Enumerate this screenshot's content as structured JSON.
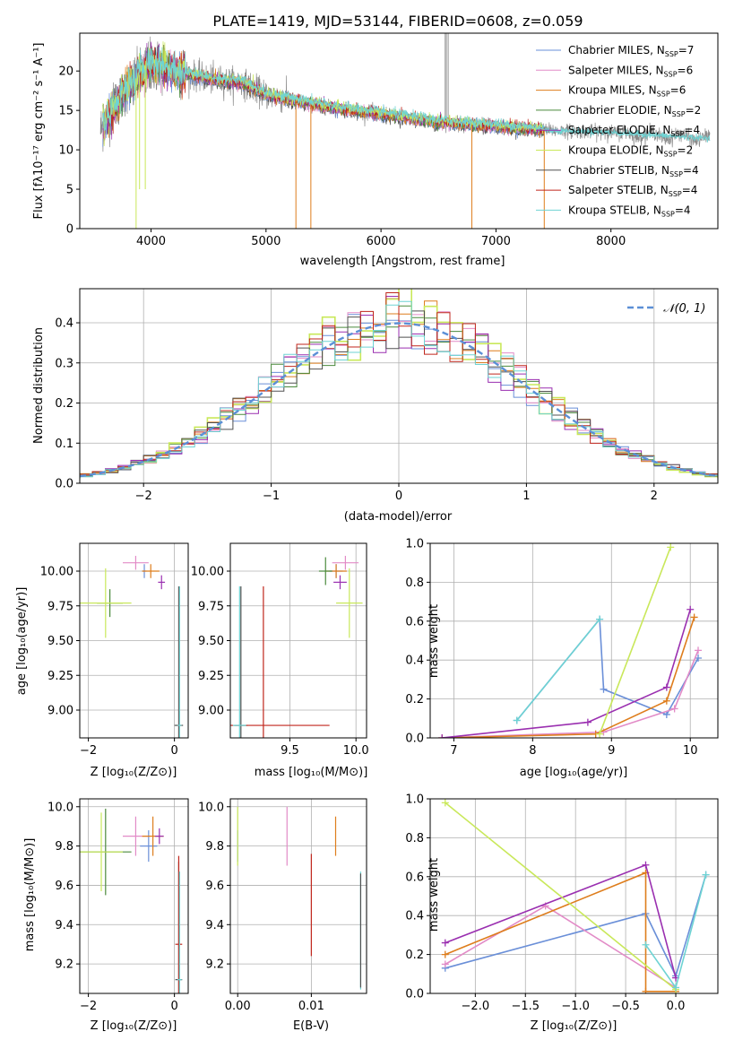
{
  "colors": [
    "#6a8fd8",
    "#e28bc7",
    "#de7d1c",
    "#4a8a3c",
    "#9a2fb0",
    "#c9e85a",
    "#505050",
    "#c0261c",
    "#6ed3d3"
  ],
  "chart_data": [
    {
      "type": "line",
      "title": "PLATE=1419, MJD=53144, FIBERID=0608, z=0.059",
      "xlabel": "wavelength [Angstrom, rest frame]",
      "ylabel": "Flux [fλ10⁻¹⁷ erg cm⁻² s⁻¹ A⁻¹]",
      "xlim": [
        3380,
        8930
      ],
      "ylim": [
        0,
        24.8
      ],
      "xticks": [
        4000,
        5000,
        6000,
        7000,
        8000
      ],
      "yticks": [
        0,
        5,
        10,
        15,
        20
      ],
      "grid": false,
      "legend": "top-right",
      "legend_entries": [
        "Chabrier MILES, N_SSP=7",
        "Salpeter MILES, N_SSP=6",
        "Kroupa MILES, N_SSP=6",
        "Chabrier ELODIE, N_SSP=2",
        "Salpeter ELODIE, N_SSP=4",
        "Kroupa ELODIE, N_SSP=2",
        "Chabrier STELIB, N_SSP=4",
        "Salpeter STELIB, N_SSP=4",
        "Kroupa STELIB, N_SSP=4"
      ],
      "legend_main": [
        "Chabrier MILES, N",
        "Salpeter MILES, N",
        "Kroupa MILES, N",
        "Chabrier ELODIE, N",
        "Salpeter ELODIE, N",
        "Kroupa ELODIE, N",
        "Chabrier STELIB, N",
        "Salpeter STELIB, N",
        "Kroupa STELIB, N"
      ],
      "legend_sub": "SSP",
      "legend_n": [
        "=7",
        "=6",
        "=6",
        "=2",
        "=4",
        "=2",
        "=4",
        "=4",
        "=4"
      ],
      "continuum": [
        [
          3600,
          13.5
        ],
        [
          3700,
          16
        ],
        [
          3800,
          18
        ],
        [
          3900,
          19.5
        ],
        [
          4000,
          21
        ],
        [
          4200,
          20
        ],
        [
          4500,
          19
        ],
        [
          4800,
          18.5
        ],
        [
          5000,
          17
        ],
        [
          5500,
          15.5
        ],
        [
          6000,
          14.5
        ],
        [
          6500,
          13.5
        ],
        [
          7000,
          13
        ],
        [
          7400,
          12.5
        ],
        [
          8000,
          12.2
        ],
        [
          8800,
          11.5
        ]
      ],
      "data_range": [
        3560,
        8860
      ],
      "model_range": [
        3580,
        7420
      ]
    },
    {
      "type": "line",
      "xlabel": "(data-model)/error",
      "ylabel": "Normed distribution",
      "xlim": [
        -2.5,
        2.5
      ],
      "ylim": [
        0,
        0.485
      ],
      "xticks": [
        -2,
        -1,
        0,
        1,
        2
      ],
      "yticks": [
        0.0,
        0.1,
        0.2,
        0.3,
        0.4
      ],
      "grid": true,
      "legend": "top-right",
      "legend_entries": [
        "𝒩(0, 1)"
      ],
      "reference_curve": "gaussian mean 0 sigma 1",
      "histogram_bin_width": 0.1
    },
    {
      "type": "scatter",
      "xlabel": "Z [log₁₀(Z/Z⊙)]",
      "ylabel": "age  [log₁₀(age/yr)]",
      "xlim": [
        -2.2,
        0.32
      ],
      "ylim": [
        8.8,
        10.2
      ],
      "xticks": [
        -2,
        0
      ],
      "yticks": [
        9.0,
        9.25,
        9.5,
        9.75,
        10.0
      ],
      "grid": true,
      "points": [
        {
          "series": 0,
          "x": -0.7,
          "y": 10.0,
          "xerr": 0.05,
          "yerr": 0.05
        },
        {
          "series": 1,
          "x": -0.9,
          "y": 10.06,
          "xerr": 0.3,
          "yerr": 0.05
        },
        {
          "series": 2,
          "x": -0.55,
          "y": 10.0,
          "xerr": 0.2,
          "yerr": 0.05
        },
        {
          "series": 3,
          "x": -1.5,
          "y": 9.77,
          "xerr": 0.3,
          "yerr": 0.1
        },
        {
          "series": 4,
          "x": -0.3,
          "y": 9.92,
          "xerr": 0.08,
          "yerr": 0.05
        },
        {
          "series": 5,
          "x": -1.6,
          "y": 9.77,
          "xerr": 0.6,
          "yerr": 0.25
        },
        {
          "series": 6,
          "x": 0.1,
          "y": 8.89,
          "xerr": 0.1,
          "yerr": 1.0
        },
        {
          "series": 7,
          "x": 0.12,
          "y": 8.89,
          "xerr": 0.05,
          "yerr": 1.0
        },
        {
          "series": 8,
          "x": 0.12,
          "y": 8.89,
          "xerr": 0.05,
          "yerr": 1.0
        }
      ]
    },
    {
      "type": "scatter",
      "xlabel": "mass [log₁₀(M/M⊙)]",
      "ylabel": "",
      "xlim": [
        9.05,
        10.08
      ],
      "ylim": [
        8.8,
        10.2
      ],
      "xticks": [
        9.5,
        10.0
      ],
      "yticks": [
        9.0,
        9.25,
        9.5,
        9.75,
        10.0
      ],
      "grid": true,
      "points": [
        {
          "series": 0,
          "x": 9.85,
          "y": 10.0,
          "xerr": 0.05,
          "yerr": 0.05
        },
        {
          "series": 1,
          "x": 9.92,
          "y": 10.06,
          "xerr": 0.1,
          "yerr": 0.05
        },
        {
          "series": 2,
          "x": 9.85,
          "y": 10.0,
          "xerr": 0.08,
          "yerr": 0.05
        },
        {
          "series": 3,
          "x": 9.77,
          "y": 10.0,
          "xerr": 0.05,
          "yerr": 0.1
        },
        {
          "series": 4,
          "x": 9.88,
          "y": 9.92,
          "xerr": 0.05,
          "yerr": 0.05
        },
        {
          "series": 5,
          "x": 9.95,
          "y": 9.77,
          "xerr": 0.1,
          "yerr": 0.25
        },
        {
          "series": 6,
          "x": 9.13,
          "y": 8.89,
          "xerr": 0.05,
          "yerr": 1.0
        },
        {
          "series": 7,
          "x": 9.3,
          "y": 8.89,
          "xerr": 0.5,
          "yerr": 1.0
        },
        {
          "series": 8,
          "x": 9.12,
          "y": 8.89,
          "xerr": 0.05,
          "yerr": 1.0
        }
      ]
    },
    {
      "type": "line",
      "xlabel": "age  [log₁₀(age/yr)]",
      "ylabel": "mass weight",
      "xlim": [
        6.7,
        10.35
      ],
      "ylim": [
        0,
        1.0
      ],
      "xticks": [
        7,
        8,
        9,
        10
      ],
      "yticks": [
        0.0,
        0.2,
        0.4,
        0.6,
        0.8,
        1.0
      ],
      "grid": true,
      "series": [
        {
          "color": 0,
          "x": [
            7.8,
            8.85,
            8.9,
            9.7,
            10.1
          ],
          "y": [
            0.09,
            0.61,
            0.25,
            0.12,
            0.41
          ]
        },
        {
          "color": 1,
          "x": [
            6.85,
            8.9,
            9.8,
            10.1
          ],
          "y": [
            0.0,
            0.03,
            0.15,
            0.45
          ]
        },
        {
          "color": 2,
          "x": [
            6.85,
            8.8,
            9.7,
            10.05
          ],
          "y": [
            0.0,
            0.02,
            0.19,
            0.62
          ]
        },
        {
          "color": 4,
          "x": [
            6.85,
            8.7,
            9.7,
            10.0
          ],
          "y": [
            0.0,
            0.08,
            0.26,
            0.66
          ]
        },
        {
          "color": 5,
          "x": [
            8.85,
            9.75
          ],
          "y": [
            0.02,
            0.98
          ]
        },
        {
          "color": 8,
          "x": [
            7.8,
            8.85
          ],
          "y": [
            0.09,
            0.61
          ]
        }
      ]
    },
    {
      "type": "scatter",
      "xlabel": "Z [log₁₀(Z/Z⊙)]",
      "ylabel": "mass [log₁₀(M/M⊙)]",
      "xlim": [
        -2.2,
        0.32
      ],
      "ylim": [
        9.05,
        10.04
      ],
      "xticks": [
        -2,
        0
      ],
      "yticks": [
        9.2,
        9.4,
        9.6,
        9.8,
        10.0
      ],
      "grid": true,
      "points": [
        {
          "series": 0,
          "x": -0.6,
          "y": 9.8,
          "xerr": 0.2,
          "yerr": 0.08
        },
        {
          "series": 1,
          "x": -0.9,
          "y": 9.85,
          "xerr": 0.3,
          "yerr": 0.1
        },
        {
          "series": 2,
          "x": -0.5,
          "y": 9.85,
          "xerr": 0.25,
          "yerr": 0.1
        },
        {
          "series": 3,
          "x": -1.6,
          "y": 9.77,
          "xerr": 0.6,
          "yerr": 0.22
        },
        {
          "series": 4,
          "x": -0.35,
          "y": 9.85,
          "xerr": 0.1,
          "yerr": 0.04
        },
        {
          "series": 5,
          "x": -1.7,
          "y": 9.77,
          "xerr": 0.5,
          "yerr": 0.2
        },
        {
          "series": 6,
          "x": 0.1,
          "y": 9.12,
          "xerr": 0.08,
          "yerr": 0.6
        },
        {
          "series": 7,
          "x": 0.1,
          "y": 9.3,
          "xerr": 0.08,
          "yerr": 0.45
        },
        {
          "series": 8,
          "x": 0.12,
          "y": 9.12,
          "xerr": 0.05,
          "yerr": 0.55
        }
      ]
    },
    {
      "type": "scatter",
      "xlabel": "E(B-V)",
      "ylabel": "",
      "xlim": [
        -0.001,
        0.0175
      ],
      "ylim": [
        9.05,
        10.04
      ],
      "xticks": [
        0.0,
        0.01
      ],
      "yticks": [
        9.2,
        9.4,
        9.6,
        9.8,
        10.0
      ],
      "grid": true,
      "points": [
        {
          "series": 0,
          "x": 0.0,
          "y": 9.8,
          "yerr": 0.08
        },
        {
          "series": 1,
          "x": 0.0067,
          "y": 9.85,
          "yerr": 0.15
        },
        {
          "series": 2,
          "x": 0.0133,
          "y": 9.85,
          "yerr": 0.1
        },
        {
          "series": 5,
          "x": 0.0,
          "y": 9.85,
          "yerr": 0.15
        },
        {
          "series": 7,
          "x": 0.01,
          "y": 9.5,
          "yerr": 0.26
        },
        {
          "series": 8,
          "x": 0.0167,
          "y": 9.37,
          "yerr": 0.3
        },
        {
          "series": 6,
          "x": 0.0167,
          "y": 9.37,
          "yerr": 0.29
        }
      ]
    },
    {
      "type": "line",
      "xlabel": "Z [log₁₀(Z/Z⊙)]",
      "ylabel": "mass weight",
      "xlim": [
        -2.45,
        0.42
      ],
      "ylim": [
        0,
        1.0
      ],
      "xticks": [
        -2.0,
        -1.5,
        -1.0,
        -0.5,
        0.0
      ],
      "yticks": [
        0.0,
        0.2,
        0.4,
        0.6,
        0.8,
        1.0
      ],
      "grid": true,
      "series": [
        {
          "color": 0,
          "x": [
            -2.3,
            -0.3,
            0.0,
            0.3
          ],
          "y": [
            0.13,
            0.41,
            0.09,
            0.61
          ]
        },
        {
          "color": 1,
          "x": [
            -2.3,
            -1.3,
            0.0
          ],
          "y": [
            0.15,
            0.45,
            0.03
          ]
        },
        {
          "color": 2,
          "x": [
            -2.3,
            -0.3,
            -0.3,
            0.0
          ],
          "y": [
            0.2,
            0.62,
            0.01,
            0.01
          ]
        },
        {
          "color": 4,
          "x": [
            -2.3,
            -0.3,
            0.0
          ],
          "y": [
            0.26,
            0.66,
            0.08
          ]
        },
        {
          "color": 5,
          "x": [
            -2.3,
            0.0
          ],
          "y": [
            0.98,
            0.02
          ]
        },
        {
          "color": 8,
          "x": [
            -0.3,
            0.0,
            0.3
          ],
          "y": [
            0.25,
            0.03,
            0.61
          ]
        }
      ]
    }
  ]
}
